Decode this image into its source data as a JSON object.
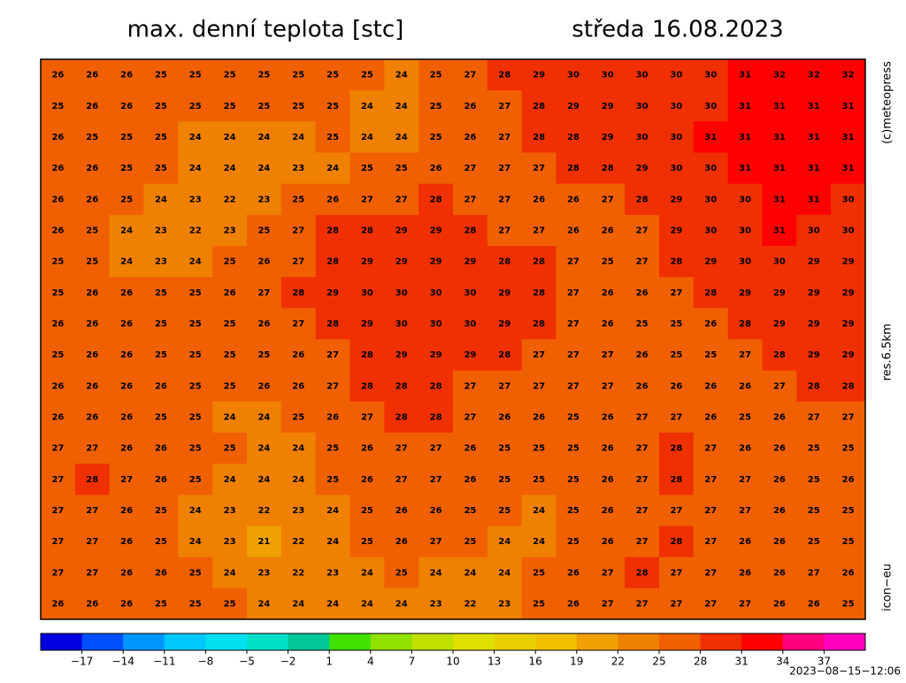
{
  "header": {
    "title": "max. denní teplota [stc]",
    "date": "středa 16.08.2023"
  },
  "side_labels": {
    "copyright": "(c)meteopress",
    "resolution": "res.6.5km",
    "model": "icon−eu"
  },
  "timestamp": "2023−08−15−12:06",
  "grid": {
    "rows": [
      [
        26,
        26,
        26,
        25,
        25,
        25,
        25,
        25,
        25,
        25,
        24,
        25,
        27,
        28,
        29,
        30,
        30,
        30,
        30,
        30,
        31,
        32,
        32,
        32
      ],
      [
        25,
        26,
        26,
        25,
        25,
        25,
        25,
        25,
        25,
        24,
        24,
        25,
        26,
        27,
        28,
        29,
        29,
        30,
        30,
        30,
        31,
        31,
        31,
        31
      ],
      [
        26,
        25,
        25,
        25,
        24,
        24,
        24,
        24,
        25,
        24,
        24,
        25,
        26,
        27,
        28,
        28,
        29,
        30,
        30,
        31,
        31,
        31,
        31,
        31
      ],
      [
        26,
        26,
        25,
        25,
        24,
        24,
        24,
        23,
        24,
        25,
        25,
        26,
        27,
        27,
        27,
        28,
        28,
        29,
        30,
        30,
        31,
        31,
        31,
        31
      ],
      [
        26,
        26,
        25,
        24,
        23,
        22,
        23,
        25,
        26,
        27,
        27,
        28,
        27,
        27,
        26,
        26,
        27,
        28,
        29,
        30,
        30,
        31,
        31,
        30
      ],
      [
        26,
        25,
        24,
        23,
        22,
        23,
        25,
        27,
        28,
        28,
        29,
        29,
        28,
        27,
        27,
        26,
        26,
        27,
        29,
        30,
        30,
        31,
        30,
        30
      ],
      [
        25,
        25,
        24,
        23,
        24,
        25,
        26,
        27,
        28,
        29,
        29,
        29,
        29,
        28,
        28,
        27,
        25,
        27,
        28,
        29,
        30,
        30,
        29,
        29
      ],
      [
        25,
        26,
        26,
        25,
        25,
        26,
        27,
        28,
        29,
        30,
        30,
        30,
        30,
        29,
        28,
        27,
        26,
        26,
        27,
        28,
        29,
        29,
        29,
        29
      ],
      [
        26,
        26,
        26,
        25,
        25,
        25,
        26,
        27,
        28,
        29,
        30,
        30,
        30,
        29,
        28,
        27,
        26,
        25,
        25,
        26,
        28,
        29,
        29,
        29
      ],
      [
        25,
        26,
        26,
        25,
        25,
        25,
        25,
        26,
        27,
        28,
        29,
        29,
        29,
        28,
        27,
        27,
        27,
        26,
        25,
        25,
        27,
        28,
        29,
        29
      ],
      [
        26,
        26,
        26,
        26,
        25,
        25,
        26,
        26,
        27,
        28,
        28,
        28,
        27,
        27,
        27,
        27,
        27,
        26,
        26,
        26,
        26,
        27,
        28,
        28
      ],
      [
        26,
        26,
        26,
        25,
        25,
        24,
        24,
        25,
        26,
        27,
        28,
        28,
        27,
        26,
        26,
        25,
        26,
        27,
        27,
        26,
        25,
        26,
        27,
        27
      ],
      [
        27,
        27,
        26,
        26,
        25,
        25,
        24,
        24,
        25,
        26,
        27,
        27,
        26,
        25,
        25,
        25,
        26,
        27,
        28,
        27,
        26,
        26,
        25,
        25
      ],
      [
        27,
        28,
        27,
        26,
        25,
        24,
        24,
        24,
        25,
        26,
        27,
        27,
        26,
        25,
        25,
        25,
        26,
        27,
        28,
        27,
        27,
        26,
        25,
        26
      ],
      [
        27,
        27,
        26,
        25,
        24,
        23,
        22,
        23,
        24,
        25,
        26,
        26,
        25,
        25,
        24,
        25,
        26,
        27,
        27,
        27,
        27,
        26,
        25,
        25
      ],
      [
        27,
        27,
        26,
        25,
        24,
        23,
        21,
        22,
        24,
        25,
        26,
        27,
        25,
        24,
        24,
        25,
        26,
        27,
        28,
        27,
        26,
        26,
        25,
        25
      ],
      [
        27,
        27,
        26,
        26,
        25,
        24,
        23,
        22,
        23,
        24,
        25,
        24,
        24,
        24,
        25,
        26,
        27,
        28,
        27,
        27,
        26,
        26,
        27,
        26
      ],
      [
        26,
        26,
        26,
        25,
        25,
        25,
        24,
        24,
        24,
        24,
        24,
        23,
        22,
        23,
        25,
        26,
        27,
        27,
        27,
        27,
        27,
        26,
        26,
        25
      ]
    ]
  },
  "colorbar": {
    "lim": [
      -20,
      40
    ],
    "colors": [
      "#0000e0",
      "#0050ff",
      "#0096ff",
      "#00c8ff",
      "#00e0f0",
      "#00e0c8",
      "#00c896",
      "#40e000",
      "#90e000",
      "#c0e000",
      "#e0e000",
      "#e8d000",
      "#f0c000",
      "#f0a000",
      "#f08000",
      "#f06000",
      "#f03000",
      "#ff0000",
      "#ff0080",
      "#ff00c0"
    ],
    "ticks": [
      {
        "value": -17,
        "label": "−17"
      },
      {
        "value": -14,
        "label": "−14"
      },
      {
        "value": -11,
        "label": "−11"
      },
      {
        "value": -8,
        "label": "−8"
      },
      {
        "value": -5,
        "label": "−5"
      },
      {
        "value": -2,
        "label": "−2"
      },
      1,
      4,
      7,
      10,
      13,
      16,
      19,
      22,
      25,
      28,
      31,
      34,
      37
    ]
  }
}
